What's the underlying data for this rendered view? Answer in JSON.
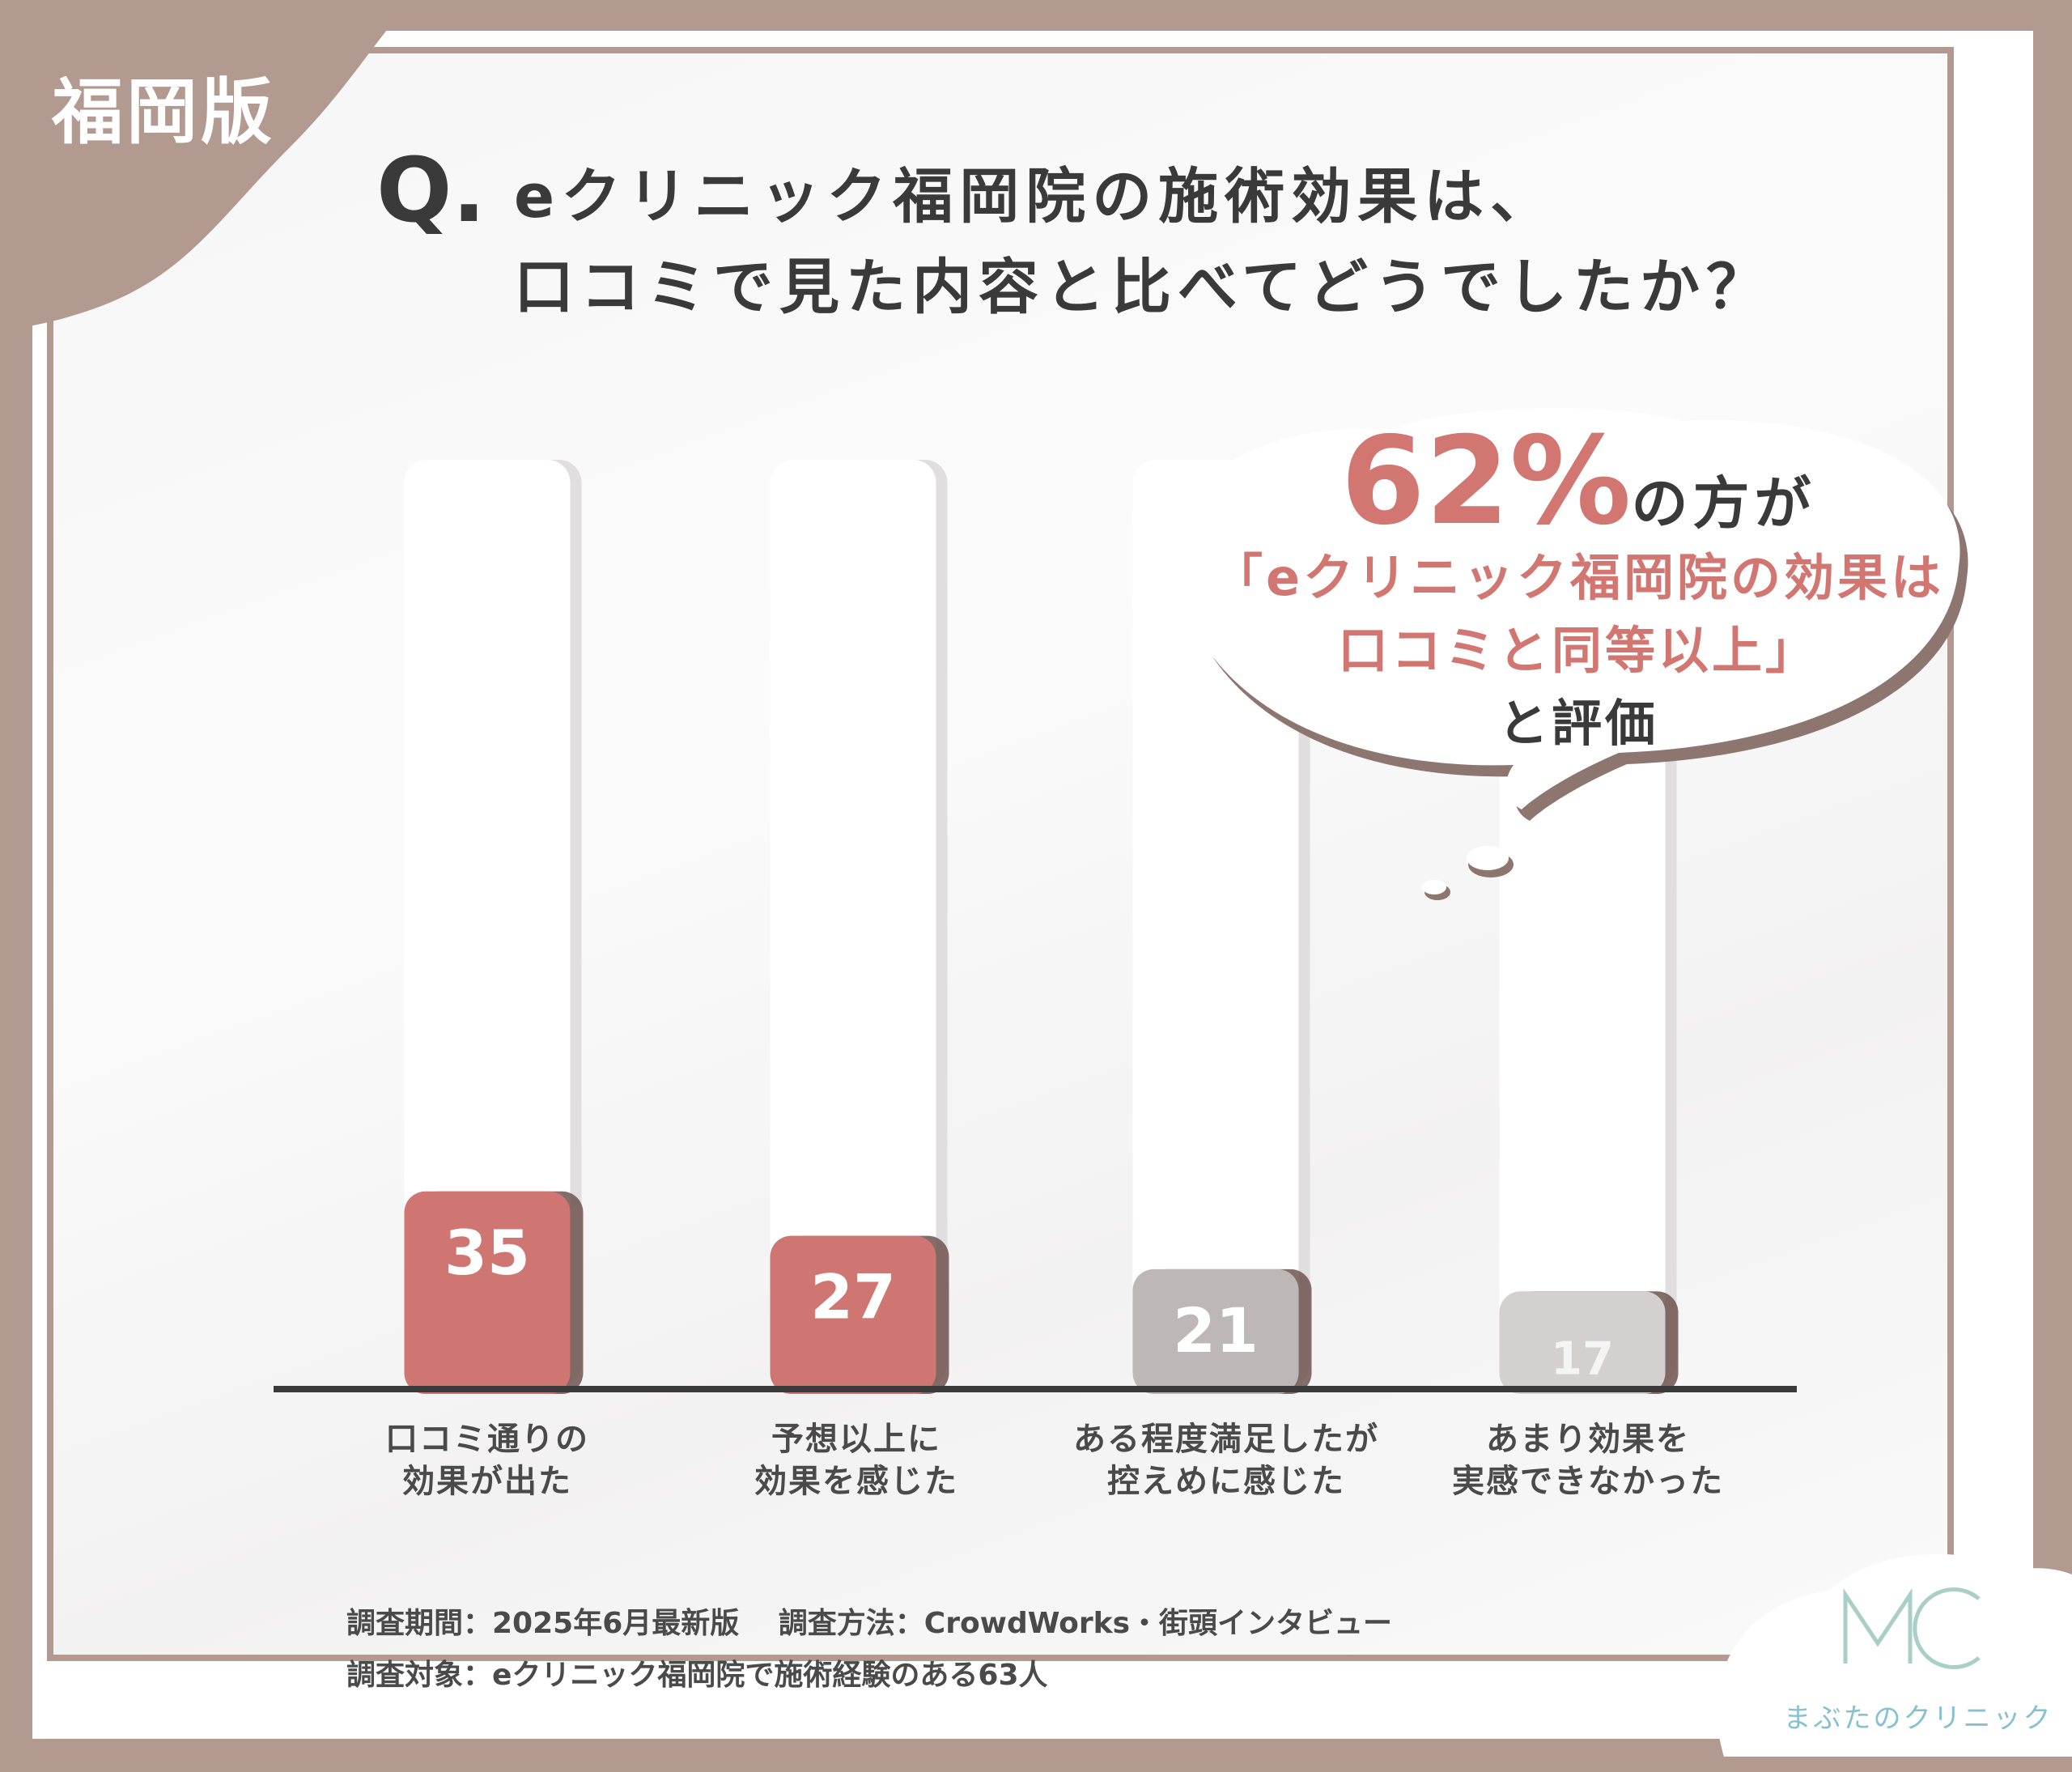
{
  "region_tag": "福岡版",
  "question": {
    "prefix": "Q.",
    "line1": "eクリニック福岡院の施術効果は、",
    "line2": "口コミで見た内容と比べてどうでしたか？"
  },
  "callout": {
    "percent": "62%",
    "after_percent": "の方が",
    "quote_line1": "「eクリニック福岡院の効果は",
    "quote_line2": "口コミと同等以上」",
    "tail": "と評価"
  },
  "chart_data": {
    "type": "bar",
    "categories": [
      [
        "口コミ通りの",
        "効果が出た"
      ],
      [
        "予想以上に",
        "効果を感じた"
      ],
      [
        "ある程度満足したが",
        "控えめに感じた"
      ],
      [
        "あまり効果を",
        "実感できなかった"
      ]
    ],
    "values": [
      35,
      27,
      21,
      17
    ],
    "value_labels": [
      "35",
      "27",
      "21",
      "17"
    ],
    "bar_colors": [
      "#cf7672",
      "#cf7672",
      "#bdb8b7",
      "#d4d0cf"
    ],
    "label_colors": [
      "#ffffff",
      "#ffffff",
      "#ffffff",
      "#f4f4f4"
    ],
    "track_color": "#ffffff",
    "axis_color": "#3a3a3a",
    "ylim": [
      0,
      100
    ]
  },
  "footer": {
    "line1": "調査期間：2025年6月最新版　  調査方法：CrowdWorks・街頭インタビュー",
    "line2": "調査対象：eクリニック福岡院で施術経験のある63人"
  },
  "brand": {
    "monogram": "MC",
    "name": "まぶたのクリニック",
    "color": "#86c1cf"
  }
}
